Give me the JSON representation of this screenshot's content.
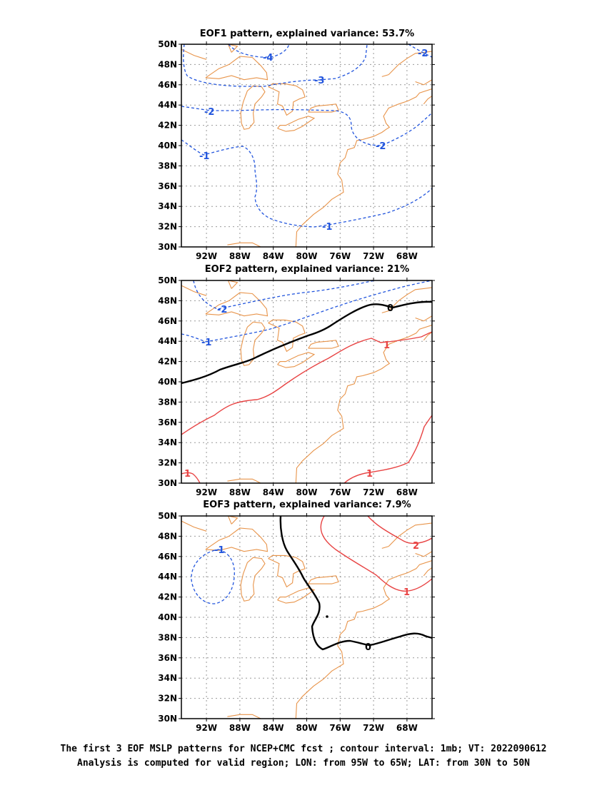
{
  "panels": [
    {
      "title": "EOF1 pattern, explained variance: 53.7%",
      "contours": [
        {
          "value": "-4",
          "style": "neg"
        },
        {
          "value": "-3",
          "style": "neg"
        },
        {
          "value": "-2",
          "style": "neg"
        },
        {
          "value": "-1",
          "style": "neg"
        }
      ]
    },
    {
      "title": "EOF2 pattern, explained variance: 21%",
      "contours": [
        {
          "value": "-2",
          "style": "neg"
        },
        {
          "value": "-1",
          "style": "neg"
        },
        {
          "value": "0",
          "style": "zero"
        },
        {
          "value": "1",
          "style": "pos"
        }
      ]
    },
    {
      "title": "EOF3 pattern, explained variance: 7.9%",
      "contours": [
        {
          "value": "-1",
          "style": "neg"
        },
        {
          "value": "0",
          "style": "zero"
        },
        {
          "value": "1",
          "style": "pos"
        },
        {
          "value": "2",
          "style": "pos"
        }
      ]
    }
  ],
  "lat_labels": [
    "50N",
    "48N",
    "46N",
    "44N",
    "42N",
    "40N",
    "38N",
    "36N",
    "34N",
    "32N",
    "30N"
  ],
  "lon_labels": [
    "92W",
    "88W",
    "84W",
    "80W",
    "76W",
    "72W",
    "68W"
  ],
  "caption": {
    "line1": "The first 3 EOF MSLP patterns for NCEP+CMC fcst ; contour interval: 1mb; VT: 2022090612",
    "line2": "Analysis is computed for valid region; LON: from 95W to 65W; LAT: from 30N to 50N"
  },
  "colors": {
    "coastline": "#e8944a",
    "negative": "#2255dd",
    "positive": "#e84444",
    "zero": "#000000",
    "grid": "#999999"
  }
}
